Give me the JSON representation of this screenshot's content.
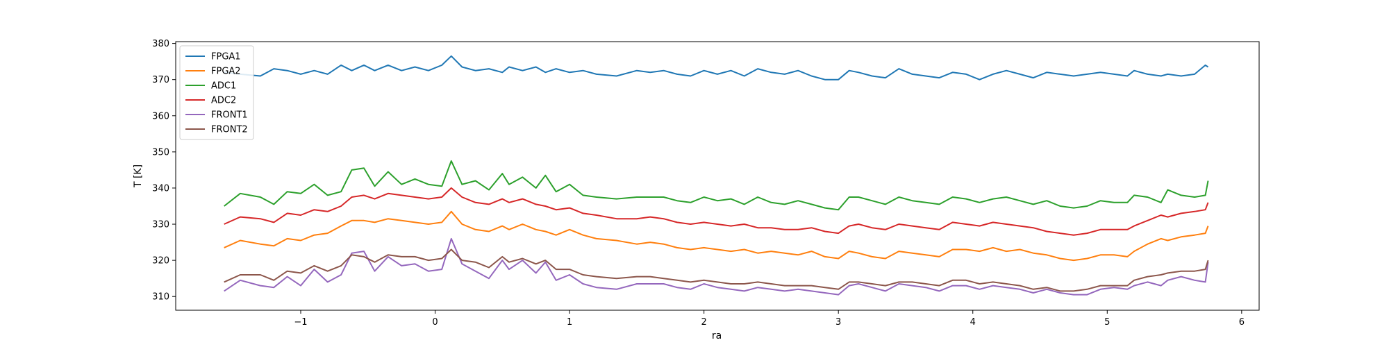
{
  "chart_data": {
    "type": "line",
    "title": "",
    "xlabel": "ra",
    "ylabel": "T [K]",
    "xlim": [
      -1.93,
      6.13
    ],
    "ylim": [
      306.2,
      380.5
    ],
    "xticks": [
      -1,
      0,
      1,
      2,
      3,
      4,
      5,
      6
    ],
    "xtick_labels": [
      "−1",
      "0",
      "1",
      "2",
      "3",
      "4",
      "5",
      "6"
    ],
    "yticks": [
      310,
      320,
      330,
      340,
      350,
      360,
      370,
      380
    ],
    "ytick_labels": [
      "310",
      "320",
      "330",
      "340",
      "350",
      "360",
      "370",
      "380"
    ],
    "grid": false,
    "legend_position": "top-left",
    "x": [
      -1.57,
      -1.45,
      -1.3,
      -1.2,
      -1.1,
      -1.0,
      -0.9,
      -0.8,
      -0.7,
      -0.62,
      -0.53,
      -0.45,
      -0.35,
      -0.25,
      -0.15,
      -0.05,
      0.05,
      0.12,
      0.2,
      0.3,
      0.4,
      0.5,
      0.55,
      0.65,
      0.75,
      0.82,
      0.9,
      1.0,
      1.1,
      1.2,
      1.35,
      1.5,
      1.6,
      1.7,
      1.8,
      1.9,
      2.0,
      2.1,
      2.2,
      2.3,
      2.4,
      2.5,
      2.6,
      2.7,
      2.8,
      2.9,
      3.0,
      3.08,
      3.15,
      3.25,
      3.35,
      3.45,
      3.55,
      3.65,
      3.75,
      3.85,
      3.95,
      4.05,
      4.15,
      4.25,
      4.35,
      4.45,
      4.55,
      4.65,
      4.75,
      4.85,
      4.95,
      5.05,
      5.15,
      5.2,
      5.3,
      5.4,
      5.45,
      5.55,
      5.65,
      5.73,
      5.75
    ],
    "series": [
      {
        "name": "FPGA1",
        "color": "#1f77b4",
        "values": [
          372.0,
          371.5,
          371.0,
          373.0,
          372.5,
          371.5,
          372.5,
          371.5,
          374.0,
          372.5,
          374.0,
          372.5,
          374.0,
          372.5,
          373.5,
          372.5,
          374.0,
          376.5,
          373.5,
          372.5,
          373.0,
          372.0,
          373.5,
          372.5,
          373.5,
          372.0,
          373.0,
          372.0,
          372.5,
          371.5,
          371.0,
          372.5,
          372.0,
          372.5,
          371.5,
          371.0,
          372.5,
          371.5,
          372.5,
          371.0,
          373.0,
          372.0,
          371.5,
          372.5,
          371.0,
          370.0,
          370.0,
          372.5,
          372.0,
          371.0,
          370.5,
          373.0,
          371.5,
          371.0,
          370.5,
          372.0,
          371.5,
          370.0,
          371.5,
          372.5,
          371.5,
          370.5,
          372.0,
          371.5,
          371.0,
          371.5,
          372.0,
          371.5,
          371.0,
          372.5,
          371.5,
          371.0,
          371.5,
          371.0,
          371.5,
          374.0,
          373.5
        ]
      },
      {
        "name": "FPGA2",
        "color": "#ff7f0e",
        "values": [
          323.5,
          325.5,
          324.5,
          324.0,
          326.0,
          325.5,
          327.0,
          327.5,
          329.5,
          331.0,
          331.0,
          330.5,
          331.5,
          331.0,
          330.5,
          330.0,
          330.5,
          333.5,
          330.0,
          328.5,
          328.0,
          329.5,
          328.5,
          330.0,
          328.5,
          328.0,
          327.0,
          328.5,
          327.0,
          326.0,
          325.5,
          324.5,
          325.0,
          324.5,
          323.5,
          323.0,
          323.5,
          323.0,
          322.5,
          323.0,
          322.0,
          322.5,
          322.0,
          321.5,
          322.5,
          321.0,
          320.5,
          322.5,
          322.0,
          321.0,
          320.5,
          322.5,
          322.0,
          321.5,
          321.0,
          323.0,
          323.0,
          322.5,
          323.5,
          322.5,
          323.0,
          322.0,
          321.5,
          320.5,
          320.0,
          320.5,
          321.5,
          321.5,
          321.0,
          322.5,
          324.5,
          326.0,
          325.5,
          326.5,
          327.0,
          327.5,
          329.5
        ]
      },
      {
        "name": "ADC1",
        "color": "#2ca02c",
        "values": [
          335.0,
          338.5,
          337.5,
          335.5,
          339.0,
          338.5,
          341.0,
          338.0,
          339.0,
          345.0,
          345.5,
          340.5,
          344.5,
          341.0,
          342.5,
          341.0,
          340.5,
          347.5,
          341.0,
          342.0,
          339.5,
          344.0,
          341.0,
          343.0,
          340.0,
          343.5,
          339.0,
          341.0,
          338.0,
          337.5,
          337.0,
          337.5,
          337.5,
          337.5,
          336.5,
          336.0,
          337.5,
          336.5,
          337.0,
          335.5,
          337.5,
          336.0,
          335.5,
          336.5,
          335.5,
          334.5,
          334.0,
          337.5,
          337.5,
          336.5,
          335.5,
          337.5,
          336.5,
          336.0,
          335.5,
          337.5,
          337.0,
          336.0,
          337.0,
          337.5,
          336.5,
          335.5,
          336.5,
          335.0,
          334.5,
          335.0,
          336.5,
          336.0,
          336.0,
          338.0,
          337.5,
          336.0,
          339.5,
          338.0,
          337.5,
          338.0,
          342.0
        ]
      },
      {
        "name": "ADC2",
        "color": "#d62728",
        "values": [
          330.0,
          332.0,
          331.5,
          330.5,
          333.0,
          332.5,
          334.0,
          333.5,
          335.0,
          337.5,
          338.0,
          337.0,
          338.5,
          338.0,
          337.5,
          337.0,
          337.5,
          340.0,
          337.5,
          336.0,
          335.5,
          337.0,
          336.0,
          337.0,
          335.5,
          335.0,
          334.0,
          334.5,
          333.0,
          332.5,
          331.5,
          331.5,
          332.0,
          331.5,
          330.5,
          330.0,
          330.5,
          330.0,
          329.5,
          330.0,
          329.0,
          329.0,
          328.5,
          328.5,
          329.0,
          328.0,
          327.5,
          329.5,
          330.0,
          329.0,
          328.5,
          330.0,
          329.5,
          329.0,
          328.5,
          330.5,
          330.0,
          329.5,
          330.5,
          330.0,
          329.5,
          329.0,
          328.0,
          327.5,
          327.0,
          327.5,
          328.5,
          328.5,
          328.5,
          329.5,
          331.0,
          332.5,
          332.0,
          333.0,
          333.5,
          334.0,
          336.0
        ]
      },
      {
        "name": "FRONT1",
        "color": "#9467bd",
        "values": [
          311.5,
          314.5,
          313.0,
          312.5,
          315.5,
          313.0,
          317.5,
          314.0,
          316.0,
          322.0,
          322.5,
          317.0,
          321.0,
          318.5,
          319.0,
          317.0,
          317.5,
          326.0,
          319.0,
          317.0,
          315.0,
          320.0,
          317.5,
          320.0,
          316.5,
          319.5,
          314.5,
          316.0,
          313.5,
          312.5,
          312.0,
          313.5,
          313.5,
          313.5,
          312.5,
          312.0,
          313.5,
          312.5,
          312.0,
          311.5,
          312.5,
          312.0,
          311.5,
          312.0,
          311.5,
          311.0,
          310.5,
          313.0,
          313.5,
          312.5,
          311.5,
          313.5,
          313.0,
          312.5,
          311.5,
          313.0,
          313.0,
          312.0,
          313.0,
          312.5,
          312.0,
          311.0,
          312.0,
          311.0,
          310.5,
          310.5,
          312.0,
          312.5,
          312.0,
          313.0,
          314.0,
          313.0,
          314.5,
          315.5,
          314.5,
          314.0,
          319.5
        ]
      },
      {
        "name": "FRONT2",
        "color": "#8c564b",
        "values": [
          314.0,
          316.0,
          316.0,
          314.5,
          317.0,
          316.5,
          318.5,
          317.0,
          318.5,
          321.5,
          321.0,
          319.5,
          321.5,
          321.0,
          321.0,
          320.0,
          320.5,
          323.0,
          320.0,
          319.5,
          318.0,
          321.0,
          319.5,
          320.5,
          319.0,
          320.0,
          317.5,
          317.5,
          316.0,
          315.5,
          315.0,
          315.5,
          315.5,
          315.0,
          314.5,
          314.0,
          314.5,
          314.0,
          313.5,
          313.5,
          314.0,
          313.5,
          313.0,
          313.0,
          313.0,
          312.5,
          312.0,
          314.0,
          314.0,
          313.5,
          313.0,
          314.0,
          314.0,
          313.5,
          313.0,
          314.5,
          314.5,
          313.5,
          314.0,
          313.5,
          313.0,
          312.0,
          312.5,
          311.5,
          311.5,
          312.0,
          313.0,
          313.0,
          313.0,
          314.5,
          315.5,
          316.0,
          316.5,
          317.0,
          317.0,
          317.5,
          320.0
        ]
      }
    ]
  }
}
